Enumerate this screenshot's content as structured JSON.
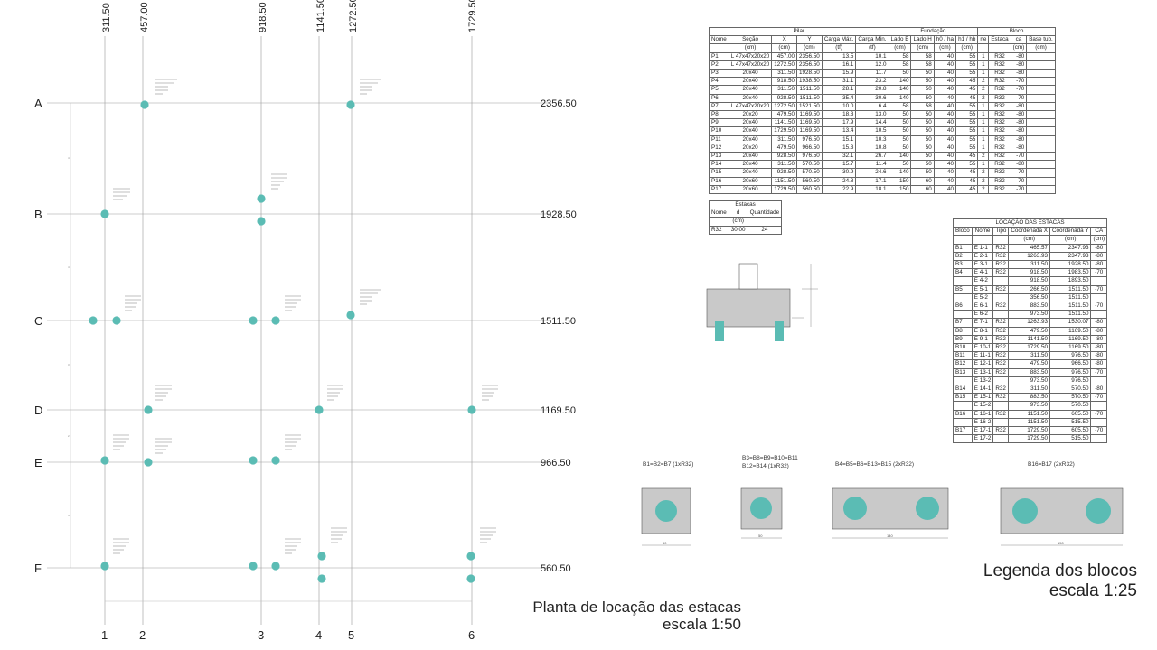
{
  "plan": {
    "col_coords": [
      "311.50",
      "457.00",
      "918.50",
      "1141.50",
      "1272.50",
      "1729.50"
    ],
    "col_names": [
      "1",
      "2",
      "3",
      "4",
      "5",
      "6"
    ],
    "rows": [
      {
        "name": "A",
        "coord": "2356.50"
      },
      {
        "name": "B",
        "coord": "1928.50"
      },
      {
        "name": "C",
        "coord": "1511.50"
      },
      {
        "name": "D",
        "coord": "1169.50"
      },
      {
        "name": "E",
        "coord": "966.50"
      },
      {
        "name": "F",
        "coord": "560.50"
      }
    ],
    "title_line1": "Planta de locação das estacas",
    "title_line2": "escala 1:50",
    "colors": {
      "pile": "#5bbcb4",
      "grid": "#888888",
      "text": "#222222"
    }
  },
  "pilar_table": {
    "group_headers": [
      "Pilar",
      "Fundação",
      "Bloco"
    ],
    "headers": [
      "Nome",
      "Seção",
      "X",
      "Y",
      "Carga Máx.",
      "Carga Mín.",
      "Lado B",
      "Lado H",
      "h0 / ha",
      "h1 / hb",
      "ne",
      "Estaca",
      "ca",
      "Base tub."
    ],
    "units": [
      "",
      "(cm)",
      "(cm)",
      "(cm)",
      "(tf)",
      "(tf)",
      "(cm)",
      "(cm)",
      "(cm)",
      "(cm)",
      "",
      "",
      "(cm)",
      "(cm)"
    ],
    "rows": [
      [
        "P1",
        "L 47x47x20x20",
        "457.00",
        "2356.50",
        "13.5",
        "10.1",
        "58",
        "58",
        "40",
        "55",
        "1",
        "R32",
        "-80",
        ""
      ],
      [
        "P2",
        "L 47x47x20x20",
        "1272.50",
        "2356.50",
        "16.1",
        "12.0",
        "58",
        "58",
        "40",
        "55",
        "1",
        "R32",
        "-80",
        ""
      ],
      [
        "P3",
        "20x40",
        "311.50",
        "1928.50",
        "15.9",
        "11.7",
        "50",
        "50",
        "40",
        "55",
        "1",
        "R32",
        "-80",
        ""
      ],
      [
        "P4",
        "20x40",
        "918.50",
        "1938.50",
        "31.1",
        "23.2",
        "140",
        "50",
        "40",
        "45",
        "2",
        "R32",
        "-70",
        ""
      ],
      [
        "P5",
        "20x40",
        "311.50",
        "1511.50",
        "28.1",
        "20.8",
        "140",
        "50",
        "40",
        "45",
        "2",
        "R32",
        "-70",
        ""
      ],
      [
        "P6",
        "20x40",
        "928.50",
        "1511.50",
        "35.4",
        "30.6",
        "140",
        "50",
        "40",
        "45",
        "2",
        "R32",
        "-70",
        ""
      ],
      [
        "P7",
        "L 47x47x20x20",
        "1272.50",
        "1521.50",
        "10.0",
        "6.4",
        "58",
        "58",
        "40",
        "55",
        "1",
        "R32",
        "-80",
        ""
      ],
      [
        "P8",
        "20x20",
        "479.50",
        "1169.50",
        "18.3",
        "13.0",
        "50",
        "50",
        "40",
        "55",
        "1",
        "R32",
        "-80",
        ""
      ],
      [
        "P9",
        "20x40",
        "1141.50",
        "1169.50",
        "17.9",
        "14.4",
        "50",
        "50",
        "40",
        "55",
        "1",
        "R32",
        "-80",
        ""
      ],
      [
        "P10",
        "20x40",
        "1729.50",
        "1169.50",
        "13.4",
        "10.5",
        "50",
        "50",
        "40",
        "55",
        "1",
        "R32",
        "-80",
        ""
      ],
      [
        "P11",
        "20x40",
        "311.50",
        "976.50",
        "15.1",
        "10.3",
        "50",
        "50",
        "40",
        "55",
        "1",
        "R32",
        "-80",
        ""
      ],
      [
        "P12",
        "20x20",
        "479.50",
        "966.50",
        "15.3",
        "10.8",
        "50",
        "50",
        "40",
        "55",
        "1",
        "R32",
        "-80",
        ""
      ],
      [
        "P13",
        "20x40",
        "928.50",
        "976.50",
        "32.1",
        "26.7",
        "140",
        "50",
        "40",
        "45",
        "2",
        "R32",
        "-70",
        ""
      ],
      [
        "P14",
        "20x40",
        "311.50",
        "570.50",
        "15.7",
        "11.4",
        "50",
        "50",
        "40",
        "55",
        "1",
        "R32",
        "-80",
        ""
      ],
      [
        "P15",
        "20x40",
        "928.50",
        "570.50",
        "30.9",
        "24.6",
        "140",
        "50",
        "40",
        "45",
        "2",
        "R32",
        "-70",
        ""
      ],
      [
        "P16",
        "20x60",
        "1151.50",
        "560.50",
        "24.8",
        "17.1",
        "150",
        "60",
        "40",
        "45",
        "2",
        "R32",
        "-70",
        ""
      ],
      [
        "P17",
        "20x60",
        "1729.50",
        "560.50",
        "22.9",
        "18.1",
        "150",
        "60",
        "40",
        "45",
        "2",
        "R32",
        "-70",
        ""
      ]
    ]
  },
  "estacas_table": {
    "title": "Estacas",
    "headers": [
      "Nome",
      "d",
      "Quantidade"
    ],
    "units": [
      "",
      "(cm)",
      ""
    ],
    "rows": [
      [
        "R32",
        "30.00",
        "24"
      ]
    ]
  },
  "locacao_table": {
    "title": "LOCAÇÃO DAS ESTACAS",
    "headers": [
      "Bloco",
      "Nome",
      "Tipo",
      "Coordenada X",
      "Coordenada Y",
      "CA"
    ],
    "units": [
      "",
      "",
      "",
      "(cm)",
      "(cm)",
      "(cm)"
    ],
    "rows": [
      [
        "B1",
        "E 1-1",
        "R32",
        "465.57",
        "2347.93",
        "-80"
      ],
      [
        "B2",
        "E 2-1",
        "R32",
        "1263.93",
        "2347.93",
        "-80"
      ],
      [
        "B3",
        "E 3-1",
        "R32",
        "311.50",
        "1928.50",
        "-80"
      ],
      [
        "B4",
        "E 4-1",
        "R32",
        "918.50",
        "1983.50",
        "-70"
      ],
      [
        "",
        "E 4-2",
        "",
        "918.50",
        "1893.50",
        ""
      ],
      [
        "B5",
        "E 5-1",
        "R32",
        "266.50",
        "1511.50",
        "-70"
      ],
      [
        "",
        "E 5-2",
        "",
        "356.50",
        "1511.50",
        ""
      ],
      [
        "B6",
        "E 6-1",
        "R32",
        "883.50",
        "1511.50",
        "-70"
      ],
      [
        "",
        "E 6-2",
        "",
        "973.50",
        "1511.50",
        ""
      ],
      [
        "B7",
        "E 7-1",
        "R32",
        "1263.93",
        "1530.07",
        "-80"
      ],
      [
        "B8",
        "E 8-1",
        "R32",
        "479.50",
        "1169.50",
        "-80"
      ],
      [
        "B9",
        "E 9-1",
        "R32",
        "1141.50",
        "1169.50",
        "-80"
      ],
      [
        "B10",
        "E 10-1",
        "R32",
        "1729.50",
        "1169.50",
        "-80"
      ],
      [
        "B11",
        "E 11-1",
        "R32",
        "311.50",
        "976.50",
        "-80"
      ],
      [
        "B12",
        "E 12-1",
        "R32",
        "479.50",
        "966.50",
        "-80"
      ],
      [
        "B13",
        "E 13-1",
        "R32",
        "883.50",
        "976.50",
        "-70"
      ],
      [
        "",
        "E 13-2",
        "",
        "973.50",
        "976.50",
        ""
      ],
      [
        "B14",
        "E 14-1",
        "R32",
        "311.50",
        "570.50",
        "-80"
      ],
      [
        "B15",
        "E 15-1",
        "R32",
        "883.50",
        "570.50",
        "-70"
      ],
      [
        "",
        "E 15-2",
        "",
        "973.50",
        "570.50",
        ""
      ],
      [
        "B16",
        "E 16-1",
        "R32",
        "1151.50",
        "605.50",
        "-70"
      ],
      [
        "",
        "E 16-2",
        "",
        "1151.50",
        "515.50",
        ""
      ],
      [
        "B17",
        "E 17-1",
        "R32",
        "1729.50",
        "605.50",
        "-70"
      ],
      [
        "",
        "E 17-2",
        "",
        "1729.50",
        "515.50",
        ""
      ]
    ]
  },
  "legend": {
    "block_labels": [
      "B1=B2=B7 (1xR32)",
      "B3=B8=B9=B10=B11",
      "B12=B14 (1xR32)",
      "B4=B5=B6=B13=B15 (2xR32)",
      "B16=B17 (2xR32)"
    ],
    "dims": [
      "50",
      "50",
      "140",
      "150"
    ],
    "title_line1": "Legenda dos blocos",
    "title_line2": "escala 1:25"
  }
}
